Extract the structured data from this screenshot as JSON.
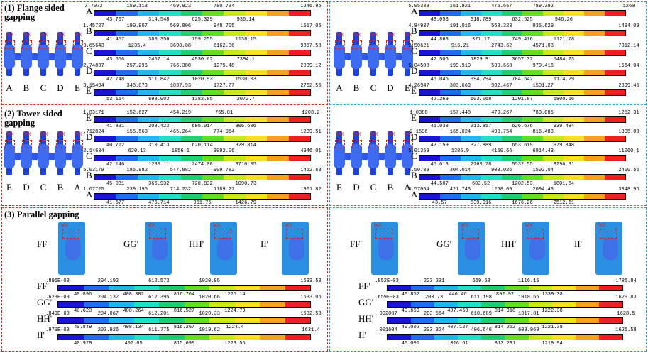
{
  "panels": {
    "flange_title": "(1) Flange sided gapping",
    "tower_title": "(2) Tower sided gapping",
    "parallel_title": "(3) Parallel gapping"
  },
  "colors": {
    "legend": [
      "#1a14d8",
      "#1e6cf0",
      "#21b8f0",
      "#22e0c8",
      "#20d070",
      "#60e020",
      "#c8e818",
      "#f8e020",
      "#f8a020",
      "#f02020"
    ],
    "red_border": "#e02020",
    "blue_border": "#1fa0d0"
  },
  "flange_letters": [
    "A",
    "B",
    "C",
    "D",
    "E"
  ],
  "tower_letters": [
    "E",
    "D",
    "C",
    "B",
    "A"
  ],
  "mx_label": "MX",
  "flange_left": [
    {
      "letter": "A",
      "top": [
        "3.7072",
        "159.113",
        "469.923",
        "780.734",
        "1246.95"
      ],
      "bottom": [
        "43.707",
        "314.548",
        "625.329",
        "936.14"
      ]
    },
    {
      "letter": "B",
      "top": [
        "1.45727",
        "190.907",
        "569.806",
        "948.705",
        "1517.05"
      ],
      "bottom": [
        "41.457",
        "380.356",
        "759.255",
        "1138.15"
      ]
    },
    {
      "letter": "C",
      "top": [
        "3.65643",
        "1235.4",
        "3698.88",
        "6162.36",
        "9857.58"
      ],
      "bottom": [
        "43.656",
        "2467.14",
        "4930.62",
        "7394.1"
      ]
    },
    {
      "letter": "D",
      "top": [
        "2.74837",
        "257.295",
        "766.388",
        "1275.48",
        "2039.12"
      ],
      "bottom": [
        "42.748",
        "511.842",
        "1020.93",
        "1530.03"
      ]
    },
    {
      "letter": "E",
      "top": [
        "3.15494",
        "348.079",
        "1037.93",
        "1727.77",
        "2762.55"
      ],
      "bottom": [
        "53.154",
        "693.003",
        "1382.85",
        "2072.7"
      ]
    }
  ],
  "flange_right": [
    {
      "letter": "A",
      "top": [
        "5.05339",
        "161.921",
        "475.657",
        "789.392",
        "1260"
      ],
      "bottom": [
        "43.053",
        "318.789",
        "632.525",
        "946.26"
      ]
    },
    {
      "letter": "B",
      "top": [
        "4.84937",
        "191.016",
        "563.323",
        "935.629",
        "1494.09"
      ],
      "bottom": [
        "44.863",
        "377.17",
        "749.476",
        "1121.78"
      ]
    },
    {
      "letter": "C",
      "top": [
        "2.50621",
        "916.21",
        "2743.62",
        "4571.03",
        "7312.14"
      ],
      "bottom": [
        "42.506",
        "1829.91",
        "3657.32",
        "5484.73"
      ]
    },
    {
      "letter": "D",
      "top": [
        "5.04508",
        "199.919",
        "589.668",
        "979.416",
        "1564.04"
      ],
      "bottom": [
        "45.045",
        "394.794",
        "784.542",
        "1174.29"
      ]
    },
    {
      "letter": "E",
      "top": [
        "4.26947",
        "303.669",
        "902.467",
        "1501.27",
        "2399.46"
      ],
      "bottom": [
        "42.269",
        "603.068",
        "1201.87",
        "1800.66"
      ]
    }
  ],
  "tower_left": [
    {
      "letter": "E",
      "top": [
        "1.83171",
        "152.627",
        "454.219",
        "755.81",
        "1208.2"
      ],
      "bottom": [
        "41.831",
        "303.423",
        "605.014",
        "906.606"
      ]
    },
    {
      "letter": "D",
      "top": [
        ".712824",
        "155.563",
        "465.264",
        "774.964",
        "1239.51"
      ],
      "bottom": [
        "40.712",
        "310.413",
        "620.114",
        "929.814"
      ]
    },
    {
      "letter": "C",
      "top": [
        "2.14634",
        "620.13",
        "1856.1",
        "3092.06",
        "4946.01"
      ],
      "bottom": [
        "42.146",
        "1238.11",
        "2474.08",
        "3710.05"
      ]
    },
    {
      "letter": "B",
      "top": [
        "5.03179",
        "185.982",
        "547.882",
        "909.782",
        "1452.63"
      ],
      "bottom": [
        "45.031",
        "366.932",
        "728.832",
        "1090.73"
      ]
    },
    {
      "letter": "A",
      "top": [
        "1.67725",
        "239.196",
        "714.232",
        "1189.27",
        "1901.82"
      ],
      "bottom": [
        "41.677",
        "476.714",
        "951.75",
        "1426.79"
      ]
    }
  ],
  "tower_right": [
    {
      "letter": "E",
      "top": [
        "1.0388",
        "157.448",
        "470.267",
        "783.085",
        "1252.31"
      ],
      "bottom": [
        "41.038",
        "313.857",
        "626.676",
        "939.494"
      ]
    },
    {
      "letter": "D",
      "top": [
        "2.1596",
        "165.024",
        "490.754",
        "816.483",
        "1305.08"
      ],
      "bottom": [
        "42.159",
        "327.889",
        "653.619",
        "979.348"
      ]
    },
    {
      "letter": "C",
      "top": [
        "5.01359",
        "1386.9",
        "4150.66",
        "6914.43",
        "11060.1"
      ],
      "bottom": [
        "45.013",
        "2768.78",
        "5532.55",
        "8296.31"
      ]
    },
    {
      "letter": "B",
      "top": [
        "4.50739",
        "304.014",
        "903.026",
        "1502.04",
        "2400.56"
      ],
      "bottom": [
        "44.507",
        "603.52",
        "1202.53",
        "1801.54"
      ]
    },
    {
      "letter": "A",
      "top": [
        "3.57054",
        "421.743",
        "1258.09",
        "2094.43",
        "3348.95"
      ],
      "bottom": [
        "43.57",
        "839.916",
        "1676.26",
        "2512.61"
      ]
    }
  ],
  "parallel_letters": [
    "FF'",
    "GG'",
    "HH'",
    "II'"
  ],
  "parallel_left": [
    {
      "letter": "FF'",
      "top": [
        ".896E-03",
        "204.192",
        "612.573",
        "1020.95",
        "1633.53"
      ],
      "bottom": [
        "40.896",
        "408.382",
        "816.764",
        "1225.14"
      ]
    },
    {
      "letter": "GG'",
      "top": [
        ".623E-03",
        "204.132",
        "612.395",
        "1020.66",
        "1633.05"
      ],
      "bottom": [
        "40.623",
        "408.264",
        "816.527",
        "1224.79"
      ]
    },
    {
      "letter": "HH'",
      "top": [
        ".849E-03",
        "204.067",
        "612.201",
        "1020.33",
        "1632.53"
      ],
      "bottom": [
        "40.849",
        "408.134",
        "816.267",
        "1224.4"
      ]
    },
    {
      "letter": "II'",
      "top": [
        ".979E-03",
        "203.926",
        "611.775",
        "1019.62",
        "1631.4"
      ],
      "bottom": [
        "40.979",
        "407.85",
        "815.699",
        "1223.55"
      ]
    }
  ],
  "parallel_right": [
    {
      "letter": "FF'",
      "top": [
        ".852E-03",
        "223.231",
        "669.68",
        "1116.15",
        "1785.84"
      ],
      "bottom": [
        "40.852",
        "446.46",
        "892.92",
        "1339.38"
      ]
    },
    {
      "letter": "GG'",
      "top": [
        ".659E-03",
        "203.73",
        "611.198",
        "1018.65",
        "1629.83"
      ],
      "bottom": [
        "40.659",
        "407.459",
        "814.918",
        "1222.38"
      ]
    },
    {
      "letter": "HH'",
      "top": [
        ".002007",
        "203.564",
        "610.689",
        "1017.81",
        "1628.5"
      ],
      "bottom": [
        "40.002",
        "407.127",
        "814.252",
        "1221.38"
      ]
    },
    {
      "letter": "II'",
      "top": [
        ".001604",
        "203.324",
        "406.646",
        "609.969",
        "1626.58"
      ],
      "bottom": [
        "40.001",
        "1016.61",
        "813.291",
        "1219.94"
      ]
    }
  ]
}
